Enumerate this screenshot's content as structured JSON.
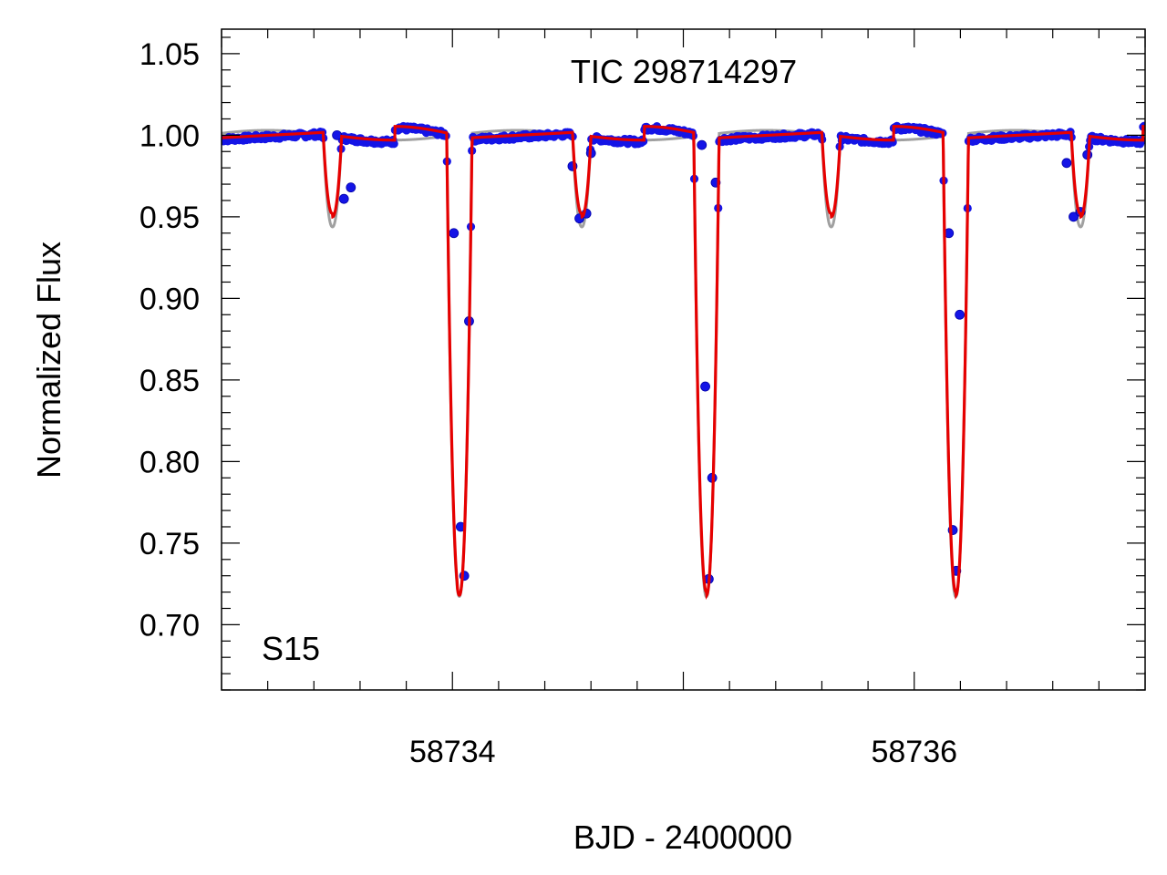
{
  "chart_data": {
    "type": "scatter",
    "title": "TIC 298714297",
    "xlabel": "BJD - 2400000",
    "ylabel": "Normalized Flux",
    "xlim": [
      58733.0,
      58737.0
    ],
    "ylim": [
      0.66,
      1.065
    ],
    "grid": false,
    "annotation": "S15",
    "x_ticks": [
      {
        "value": 58734,
        "label": "58734"
      },
      {
        "value": 58736,
        "label": "58736"
      }
    ],
    "x_minor_step": 0.2,
    "x_major_ticks_unlabeled": [
      58733,
      58735,
      58737
    ],
    "y_ticks": [
      {
        "value": 0.7,
        "label": "0.70"
      },
      {
        "value": 0.75,
        "label": "0.75"
      },
      {
        "value": 0.8,
        "label": "0.80"
      },
      {
        "value": 0.85,
        "label": "0.85"
      },
      {
        "value": 0.9,
        "label": "0.90"
      },
      {
        "value": 0.95,
        "label": "0.95"
      },
      {
        "value": 1.0,
        "label": "1.00"
      },
      {
        "value": 1.05,
        "label": "1.05"
      }
    ],
    "y_minor_step": 0.01,
    "colors": {
      "data": "#1414e6",
      "data_edge": "#0000aa",
      "model": "#e60000",
      "reference": "#a0a0a0"
    },
    "eclipses": {
      "primary": {
        "times": [
          58734.03,
          58735.1,
          58736.18
        ],
        "depth_model": 0.72,
        "depth_reference": 0.717,
        "half_width": 0.055
      },
      "secondary": {
        "times": [
          58733.48,
          58734.56,
          58735.64,
          58736.72
        ],
        "depth_model": 0.95,
        "depth_reference": 0.944,
        "half_width": 0.04
      }
    },
    "series": [
      {
        "role": "observed",
        "marker": "circle",
        "x": [
          58733.5,
          58733.53,
          58733.56,
          58734.006,
          58734.036,
          58734.051,
          58734.072,
          58734.52,
          58734.55,
          58734.58,
          58734.6,
          58735.08,
          58735.095,
          58735.11,
          58735.125,
          58735.14,
          58736.15,
          58736.167,
          58736.182,
          58736.197,
          58736.66,
          58736.69,
          58736.72,
          58736.75
        ],
        "y": [
          1.0,
          0.961,
          0.968,
          0.94,
          0.76,
          0.73,
          0.886,
          0.981,
          0.949,
          0.952,
          0.989,
          0.994,
          0.846,
          0.728,
          0.79,
          0.971,
          0.94,
          0.758,
          0.733,
          0.89,
          0.983,
          0.95,
          0.953,
          0.988
        ]
      }
    ]
  }
}
